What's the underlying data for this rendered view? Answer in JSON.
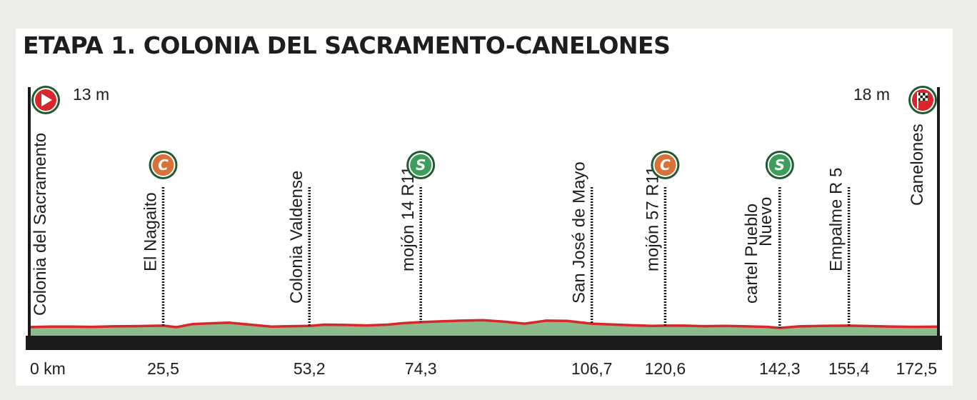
{
  "title": "ETAPA 1. COLONIA DEL SACRAMENTO-CANELONES",
  "start": {
    "name": "Colonia del Sacramento",
    "altitude": "13 m",
    "km_label": "0 km",
    "icon": "start-play-icon"
  },
  "finish": {
    "name": "Canelones",
    "altitude": "18 m",
    "km_label": "172,5",
    "icon": "finish-flag-icon"
  },
  "waypoints": [
    {
      "name": "El Nagaito",
      "km": 25.5,
      "km_label": "25,5",
      "marker": "C"
    },
    {
      "name": "Colonia Valdense",
      "km": 53.2,
      "km_label": "53,2",
      "marker": ""
    },
    {
      "name": "mojón 14 R11",
      "km": 74.3,
      "km_label": "74,3",
      "marker": "S"
    },
    {
      "name": "San José de Mayo",
      "km": 106.7,
      "km_label": "106,7",
      "marker": ""
    },
    {
      "name": "mojón 57 R11",
      "km": 120.6,
      "km_label": "120,6",
      "marker": "C"
    },
    {
      "name": "cartel Pueblo Nuevo",
      "line1": "cartel Pueblo",
      "line2": "Nuevo",
      "km": 142.3,
      "km_label": "142,3",
      "marker": "S"
    },
    {
      "name": "Empalme R 5",
      "km": 155.4,
      "km_label": "155,4",
      "marker": ""
    }
  ],
  "markers": {
    "C": "C",
    "S": "S"
  },
  "colors": {
    "profile_fill": "#8cbb8c",
    "profile_line": "#d8262a",
    "marker_C": "#d9713a",
    "marker_S": "#3d9e5a",
    "marker_ring": "#1f5a30",
    "base_bar": "#1a1a1a",
    "start_icon": "#d8262a"
  },
  "elevation_km": [
    0,
    4,
    8,
    12,
    16,
    20,
    25.5,
    28,
    31,
    34,
    38,
    42,
    46,
    50,
    53.2,
    56,
    60,
    64,
    68,
    71,
    74.3,
    78,
    82,
    86,
    90,
    94,
    98,
    102,
    106.7,
    110,
    114,
    118,
    120.6,
    124,
    128,
    132,
    136,
    140,
    142.3,
    146,
    150,
    155.4,
    160,
    164,
    168,
    172.5
  ],
  "elevation_rel": [
    0.0,
    0.1,
    0.1,
    0.05,
    0.15,
    0.2,
    0.3,
    0.0,
    0.6,
    0.75,
    0.9,
    0.5,
    0.1,
    0.2,
    0.25,
    0.5,
    0.45,
    0.35,
    0.5,
    0.8,
    1.0,
    1.15,
    1.3,
    1.4,
    1.1,
    0.7,
    1.3,
    1.25,
    0.7,
    0.55,
    0.4,
    0.25,
    0.3,
    0.3,
    0.2,
    0.25,
    0.15,
    0.05,
    -0.15,
    0.15,
    0.25,
    0.3,
    0.2,
    0.1,
    0.05,
    0.1
  ]
}
